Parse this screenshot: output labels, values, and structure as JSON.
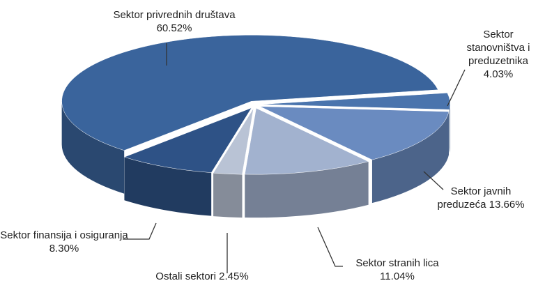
{
  "chart_data": {
    "type": "pie",
    "categories": [
      "Sektor stanovništva i preduzetnika",
      "Sektor javnih preduzeća",
      "Sektor stranih lica",
      "Ostali sektori",
      "Sektor finansija i osiguranja",
      "Sektor privrednih društava"
    ],
    "values": [
      4.03,
      13.66,
      11.04,
      2.45,
      8.3,
      60.52
    ],
    "value_labels": [
      "4.03%",
      "13.66%",
      "11.04%",
      "2.45%",
      "8.30%",
      "60.52%"
    ],
    "colors": [
      "#4a74ad",
      "#6a8bc0",
      "#a2b2cf",
      "#b9c3d5",
      "#2e5286",
      "#3a649c"
    ]
  }
}
